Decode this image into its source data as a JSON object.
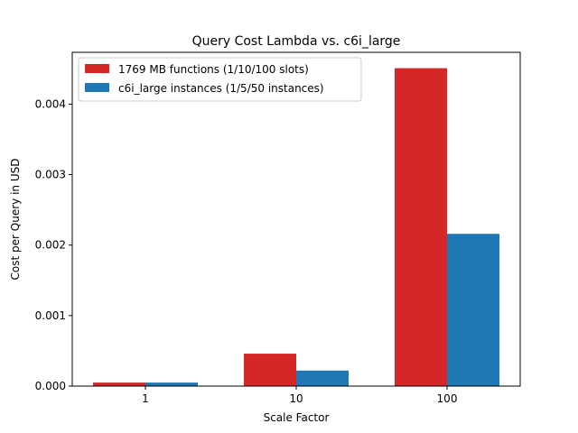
{
  "chart_data": {
    "type": "bar",
    "title": "Query Cost Lambda vs. c6i_large",
    "xlabel": "Scale Factor",
    "ylabel": "Cost per Query in USD",
    "categories": [
      "1",
      "10",
      "100"
    ],
    "series": [
      {
        "name": "1769 MB functions (1/10/100 slots)",
        "color": "#d62728",
        "values": [
          5e-05,
          0.00046,
          0.00451
        ]
      },
      {
        "name": "c6i_large instances (1/5/50 instances)",
        "color": "#1f77b4",
        "values": [
          5e-05,
          0.00022,
          0.00216
        ]
      }
    ],
    "yticks": [
      "0.000",
      "0.001",
      "0.002",
      "0.003",
      "0.004"
    ],
    "ylim": [
      0,
      0.004735
    ],
    "grid": false,
    "legend_position": "upper left"
  }
}
